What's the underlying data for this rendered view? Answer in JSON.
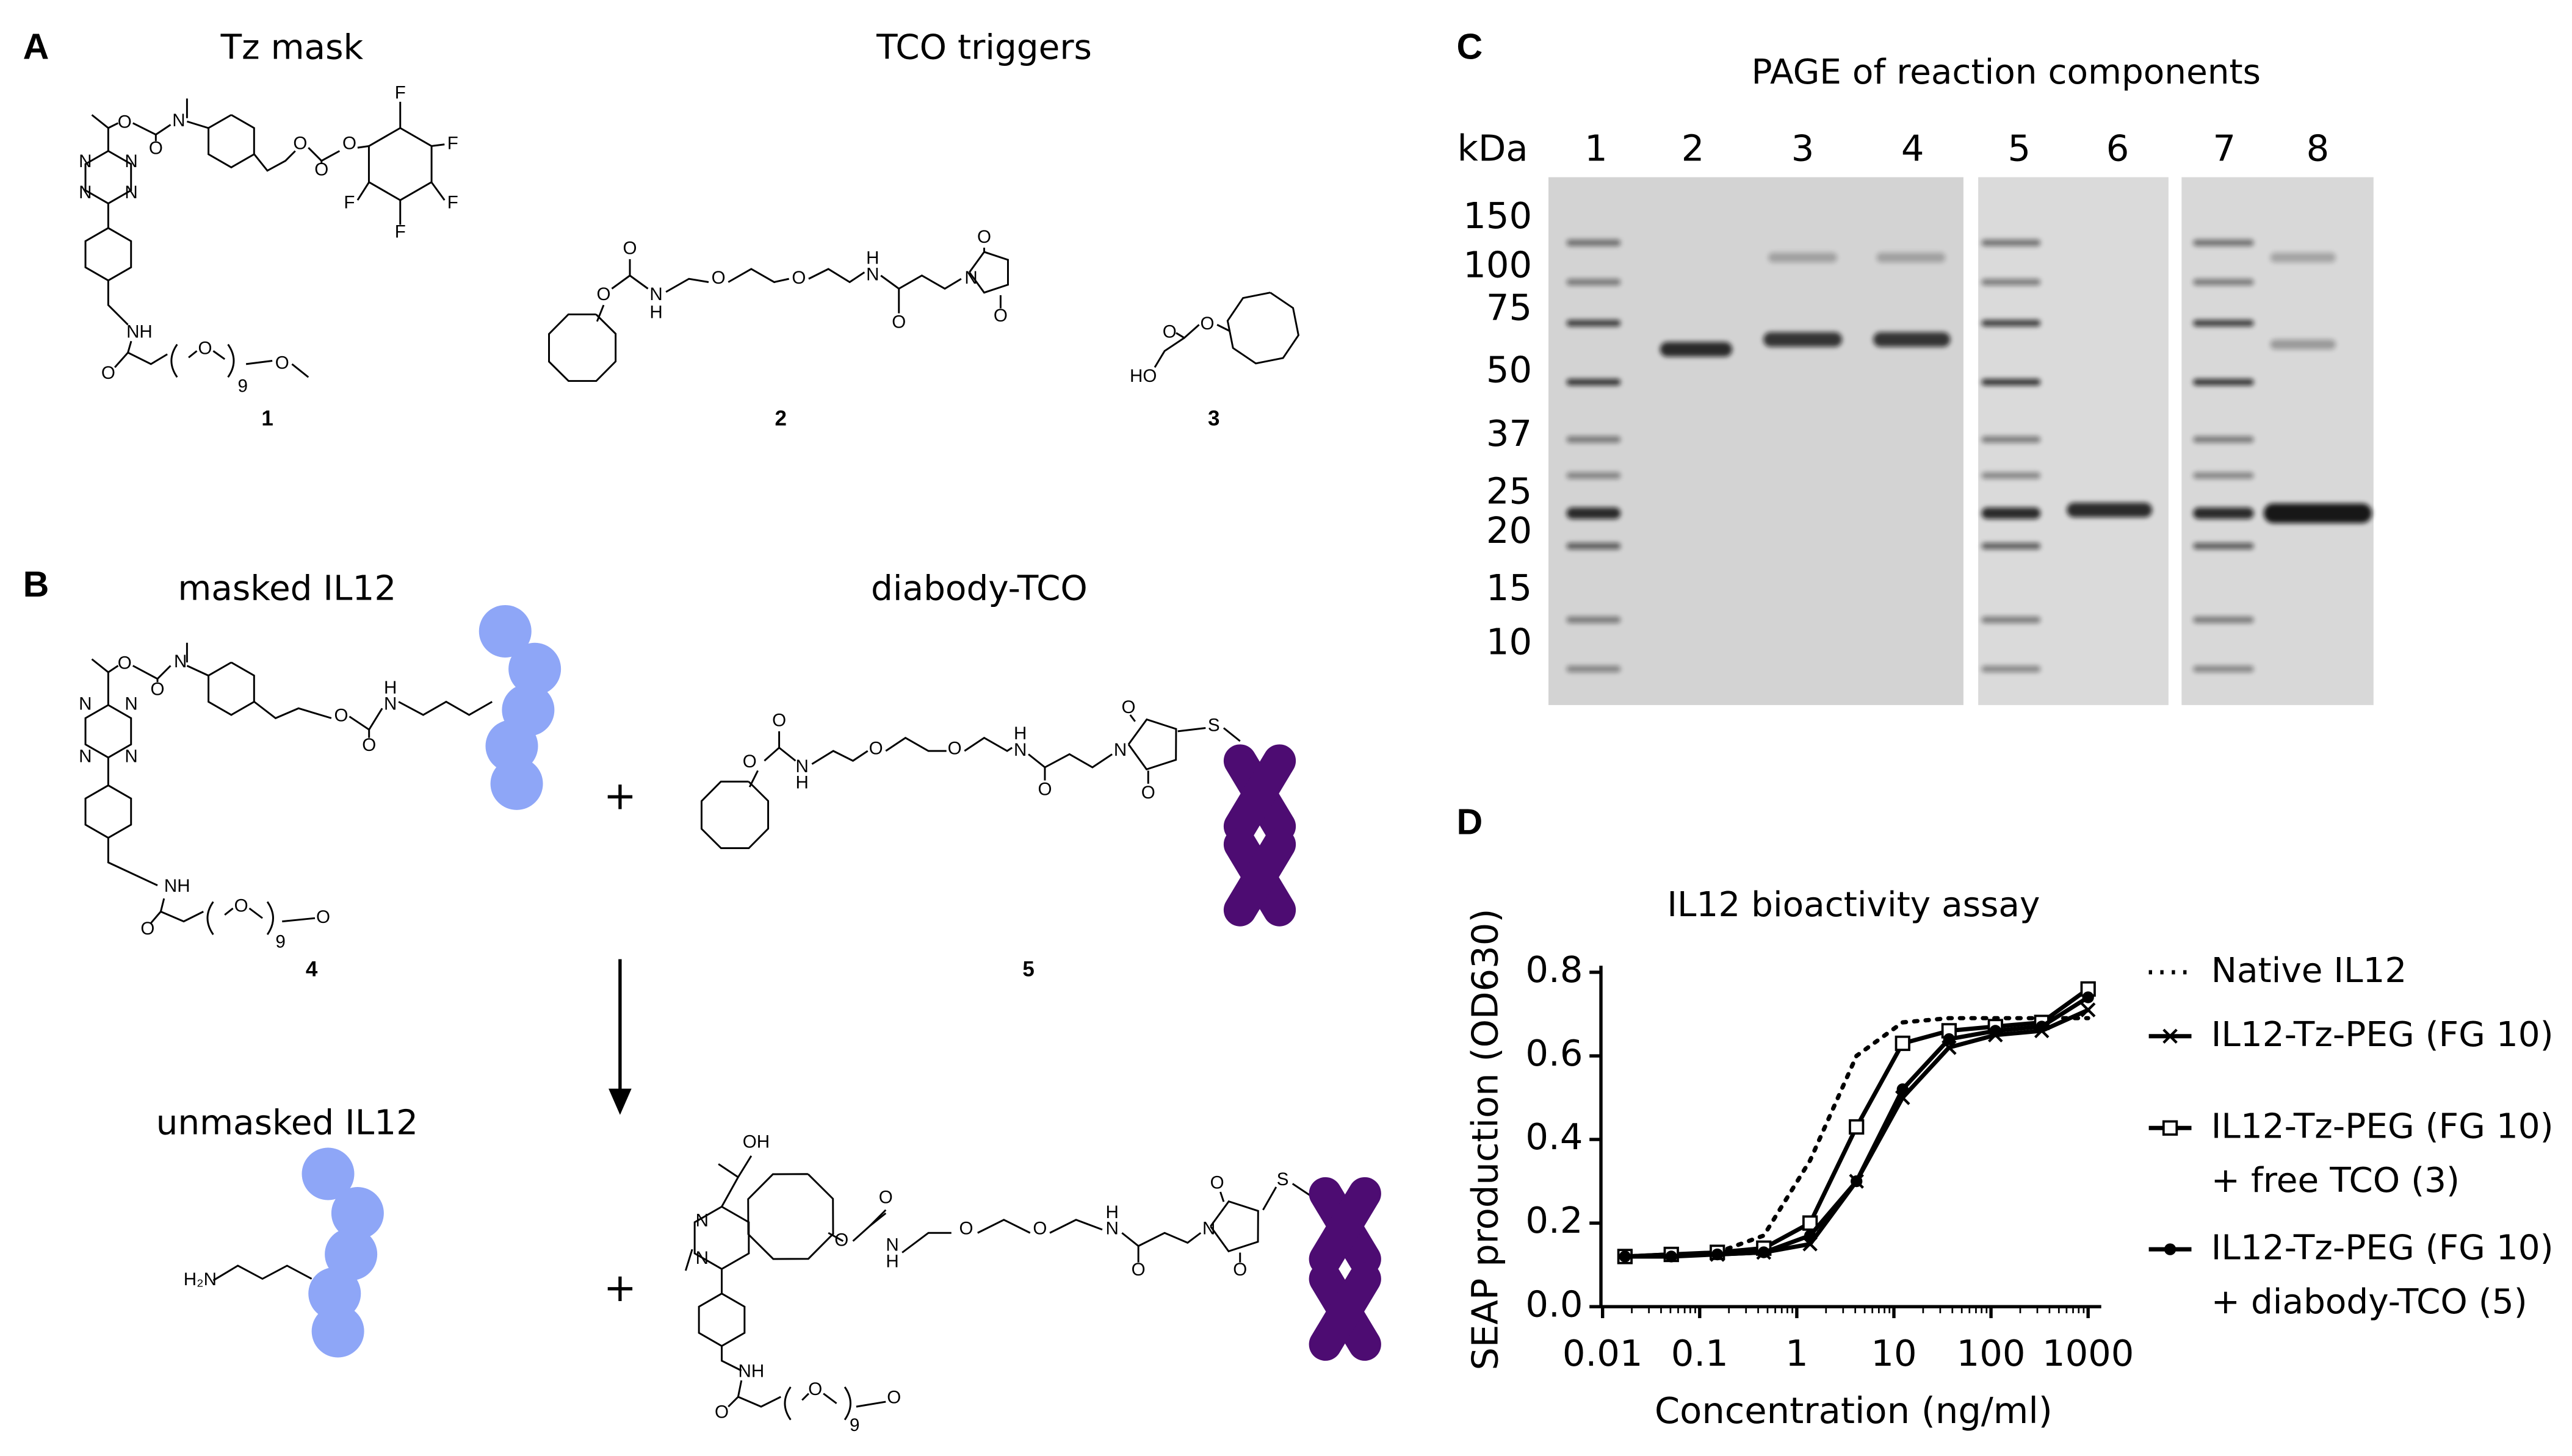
{
  "panel_a": {
    "label": "A",
    "title_mask": "Tz mask",
    "title_triggers": "TCO triggers"
  },
  "panel_b": {
    "label": "B",
    "title_masked": "masked IL12",
    "title_diabody": "diabody-TCO",
    "title_unmasked": "unmasked IL12",
    "plus_top": "+",
    "plus_bottom": "+",
    "amine": "H₂N"
  },
  "structures": [
    {
      "number": "1",
      "atoms": [
        "O",
        "O",
        "N",
        "N",
        "N",
        "N",
        "N",
        "O",
        "O",
        "O",
        "F",
        "F",
        "F",
        "F",
        "F",
        "NH",
        "O",
        "O",
        "9",
        "O"
      ]
    },
    {
      "number": "2",
      "atoms": [
        "O",
        "O",
        "N",
        "H",
        "O",
        "O",
        "H",
        "N",
        "O",
        "N",
        "O",
        "O"
      ]
    },
    {
      "number": "3",
      "atoms": [
        "O",
        "HO",
        "O"
      ]
    },
    {
      "number": "4",
      "atoms": [
        "O",
        "O",
        "N",
        "N",
        "N",
        "N",
        "N",
        "O",
        "H",
        "N",
        "O",
        "NH",
        "O",
        "O",
        "9",
        "O"
      ]
    },
    {
      "number": "5",
      "atoms": [
        "O",
        "O",
        "N",
        "H",
        "O",
        "O",
        "H",
        "N",
        "O",
        "N",
        "O",
        "O",
        "S"
      ]
    },
    {
      "number": null,
      "atoms": [
        "OH",
        "N",
        "N",
        "O",
        "O",
        "N",
        "H",
        "O",
        "O",
        "H",
        "N",
        "O",
        "N",
        "O",
        "O",
        "S",
        "NH",
        "O",
        "O",
        "9",
        "O"
      ]
    }
  ],
  "panel_c": {
    "label": "C",
    "title": "PAGE of reaction components",
    "unit": "kDa",
    "lanes": [
      "1",
      "2",
      "3",
      "4",
      "5",
      "6",
      "7",
      "8"
    ],
    "markers": [
      "150",
      "100",
      "75",
      "50",
      "37",
      "25",
      "20",
      "15",
      "10"
    ]
  },
  "panel_d_label": "D",
  "chart_data": {
    "type": "line",
    "title": "IL12 bioactivity assay",
    "x_label": "Concentration (ng/ml)",
    "y_label": "SEAP production (OD630)",
    "x_scale": "log",
    "x": [
      0.017,
      0.051,
      0.152,
      0.457,
      1.37,
      4.12,
      12.3,
      37,
      111,
      333,
      1000
    ],
    "xlim": [
      0.01,
      1000
    ],
    "xticks": [
      0.01,
      0.1,
      1,
      10,
      100,
      1000
    ],
    "ylim": [
      0,
      0.8
    ],
    "yticks": [
      {
        "value": 0,
        "label": "0.0"
      },
      0.2,
      0.4,
      0.6,
      0.8
    ],
    "legend": "right",
    "series": [
      {
        "name": "Native IL12",
        "color": "#000000",
        "style": "dotted",
        "marker": "none",
        "values": [
          0.12,
          0.12,
          0.13,
          0.17,
          0.35,
          0.6,
          0.68,
          0.69,
          0.69,
          0.69,
          0.69
        ]
      },
      {
        "name": "IL12-Tz-PEG (FG 10)",
        "color": "#000000",
        "style": "solid",
        "marker": "cross",
        "values": [
          0.12,
          0.125,
          0.125,
          0.13,
          0.15,
          0.3,
          0.5,
          0.62,
          0.65,
          0.66,
          0.71
        ]
      },
      {
        "name": "IL12-Tz-PEG (FG 10) + free TCO (3)",
        "color": "#000000",
        "style": "solid",
        "marker": "square",
        "values": [
          0.12,
          0.125,
          0.13,
          0.14,
          0.2,
          0.43,
          0.63,
          0.66,
          0.67,
          0.68,
          0.76
        ]
      },
      {
        "name": "IL12-Tz-PEG (FG 10) + diabody-TCO (5)",
        "color": "#000000",
        "style": "solid",
        "marker": "circle",
        "values": [
          0.12,
          0.12,
          0.125,
          0.13,
          0.17,
          0.3,
          0.52,
          0.64,
          0.66,
          0.67,
          0.74
        ]
      }
    ]
  }
}
